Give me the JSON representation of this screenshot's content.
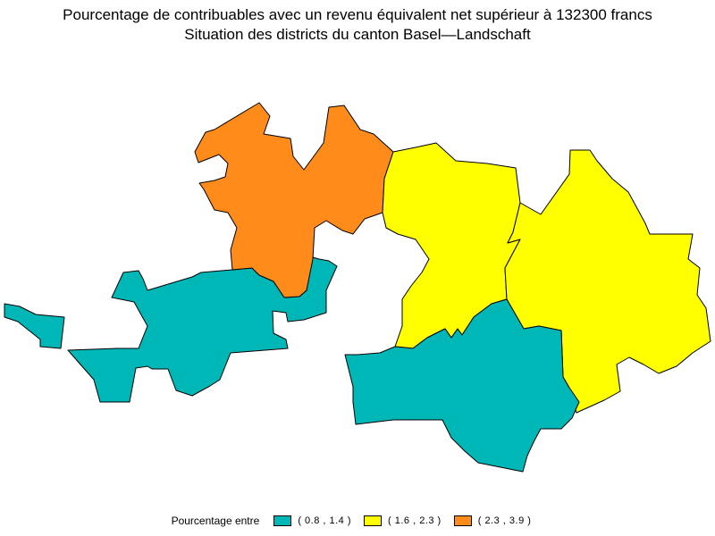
{
  "title": {
    "line1": "Pourcentage de contribuables avec un revenu équivalent net supérieur à 132300 francs",
    "line2": "Situation des districts du canton Basel—Landschaft"
  },
  "legend": {
    "label": "Pourcentage entre",
    "items": [
      {
        "label": "( 0.8 , 1.4 )",
        "color": "#00B7B7"
      },
      {
        "label": "( 1.6 , 2.3 )",
        "color": "#FFFF00"
      },
      {
        "label": "( 2.3 , 3.9 )",
        "color": "#FF8C1A"
      }
    ]
  },
  "map_data": {
    "districts": [
      {
        "id": "north-orange",
        "class": 2
      },
      {
        "id": "west-teal",
        "class": 0
      },
      {
        "id": "center-yellow",
        "class": 1
      },
      {
        "id": "east-yellow",
        "class": 1
      },
      {
        "id": "south-teal",
        "class": 0
      }
    ]
  }
}
